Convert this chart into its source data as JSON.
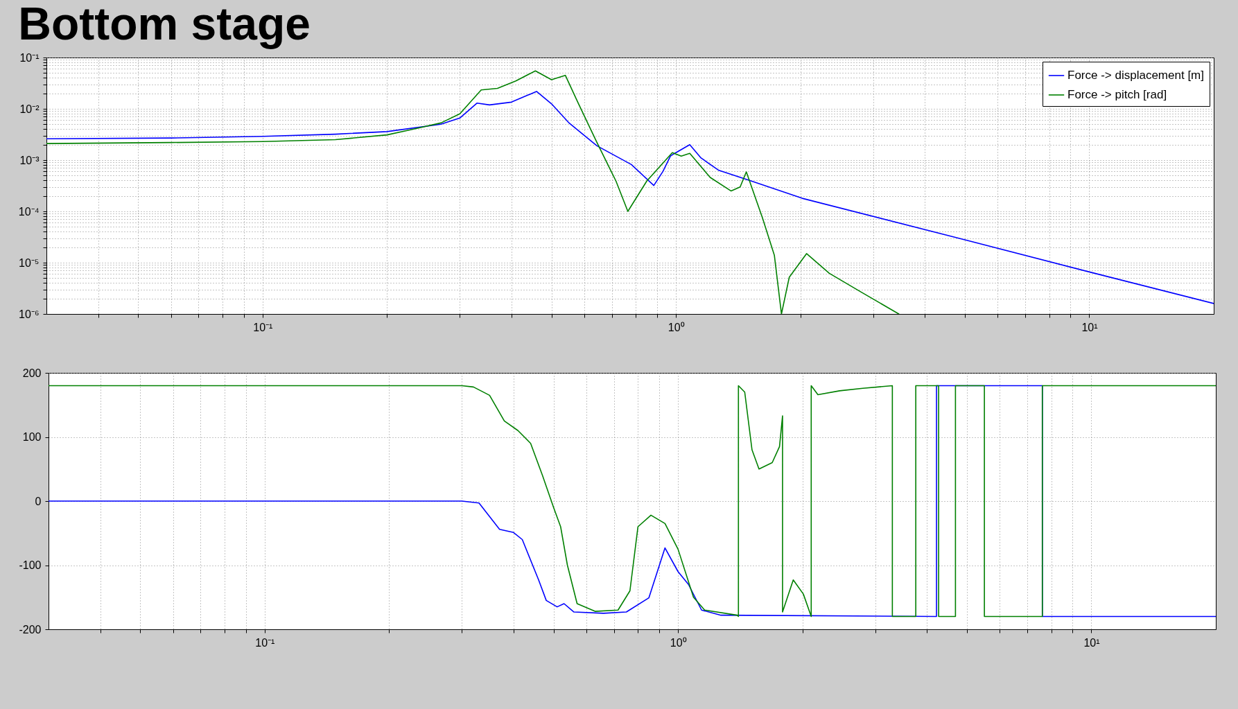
{
  "chart_data": [
    {
      "type": "line",
      "title": "Bottom stage",
      "log": "xy",
      "grid": true,
      "legend": "top right",
      "xlim": [
        0.03,
        20
      ],
      "xticks": [
        {
          "value": 0.04,
          "label": null
        },
        {
          "value": 0.05,
          "label": null
        },
        {
          "value": 0.06,
          "label": null
        },
        {
          "value": 0.07,
          "label": null
        },
        {
          "value": 0.08,
          "label": null
        },
        {
          "value": 0.09,
          "label": null
        },
        {
          "value": 0.1,
          "label": "10⁻¹"
        },
        {
          "value": 0.2,
          "label": null
        },
        {
          "value": 0.3,
          "label": null
        },
        {
          "value": 0.4,
          "label": null
        },
        {
          "value": 0.5,
          "label": null
        },
        {
          "value": 0.6,
          "label": null
        },
        {
          "value": 0.7,
          "label": null
        },
        {
          "value": 0.8,
          "label": null
        },
        {
          "value": 0.9,
          "label": null
        },
        {
          "value": 1,
          "label": "10⁰"
        },
        {
          "value": 2,
          "label": null
        },
        {
          "value": 3,
          "label": null
        },
        {
          "value": 4,
          "label": null
        },
        {
          "value": 5,
          "label": null
        },
        {
          "value": 6,
          "label": null
        },
        {
          "value": 7,
          "label": null
        },
        {
          "value": 8,
          "label": null
        },
        {
          "value": 9,
          "label": null
        },
        {
          "value": 10,
          "label": "10¹"
        }
      ],
      "ylim": [
        1e-06,
        0.1
      ],
      "yticks": [
        {
          "value": 1e-06,
          "label": "10⁻⁶"
        },
        {
          "value": 2e-06,
          "label": null
        },
        {
          "value": 3e-06,
          "label": null
        },
        {
          "value": 4e-06,
          "label": null
        },
        {
          "value": 5e-06,
          "label": null
        },
        {
          "value": 6e-06,
          "label": null
        },
        {
          "value": 7e-06,
          "label": null
        },
        {
          "value": 8e-06,
          "label": null
        },
        {
          "value": 9e-06,
          "label": null
        },
        {
          "value": 1e-05,
          "label": "10⁻⁵"
        },
        {
          "value": 2e-05,
          "label": null
        },
        {
          "value": 3e-05,
          "label": null
        },
        {
          "value": 4e-05,
          "label": null
        },
        {
          "value": 5e-05,
          "label": null
        },
        {
          "value": 6e-05,
          "label": null
        },
        {
          "value": 7e-05,
          "label": null
        },
        {
          "value": 8e-05,
          "label": null
        },
        {
          "value": 9e-05,
          "label": null
        },
        {
          "value": 0.0001,
          "label": "10⁻⁴"
        },
        {
          "value": 0.0002,
          "label": null
        },
        {
          "value": 0.0003,
          "label": null
        },
        {
          "value": 0.0004,
          "label": null
        },
        {
          "value": 0.0005,
          "label": null
        },
        {
          "value": 0.0006,
          "label": null
        },
        {
          "value": 0.0007,
          "label": null
        },
        {
          "value": 0.0008,
          "label": null
        },
        {
          "value": 0.0009,
          "label": null
        },
        {
          "value": 0.001,
          "label": "10⁻³"
        },
        {
          "value": 0.002,
          "label": null
        },
        {
          "value": 0.003,
          "label": null
        },
        {
          "value": 0.004,
          "label": null
        },
        {
          "value": 0.005,
          "label": null
        },
        {
          "value": 0.006,
          "label": null
        },
        {
          "value": 0.007,
          "label": null
        },
        {
          "value": 0.008,
          "label": null
        },
        {
          "value": 0.009,
          "label": null
        },
        {
          "value": 0.01,
          "label": "10⁻²"
        },
        {
          "value": 0.02,
          "label": null
        },
        {
          "value": 0.03,
          "label": null
        },
        {
          "value": 0.04,
          "label": null
        },
        {
          "value": 0.05,
          "label": null
        },
        {
          "value": 0.06,
          "label": null
        },
        {
          "value": 0.07,
          "label": null
        },
        {
          "value": 0.08,
          "label": null
        },
        {
          "value": 0.09,
          "label": null
        },
        {
          "value": 0.1,
          "label": "10⁻¹"
        }
      ],
      "series": [
        {
          "name": "Force -> displacement [m]",
          "color": "#0000ff",
          "x": [
            0.03,
            0.06,
            0.1,
            0.15,
            0.2,
            0.27,
            0.3,
            0.33,
            0.354,
            0.4,
            0.46,
            0.5,
            0.55,
            0.644,
            0.78,
            0.884,
            0.93,
            0.97,
            1.0,
            1.08,
            1.15,
            1.27,
            1.51,
            2.02,
            5,
            10,
            20
          ],
          "values": [
            0.0026,
            0.0027,
            0.0029,
            0.0032,
            0.0036,
            0.005,
            0.0066,
            0.0129,
            0.0119,
            0.0135,
            0.0218,
            0.0125,
            0.0054,
            0.0019,
            0.00082,
            0.00032,
            0.0006,
            0.0012,
            0.0014,
            0.002,
            0.0011,
            0.00063,
            0.0004,
            0.00018,
            2.8e-05,
            6.6e-06,
            1.6e-06
          ]
        },
        {
          "name": "Force -> pitch [rad]",
          "color": "#008000",
          "x": [
            0.03,
            0.06,
            0.1,
            0.15,
            0.2,
            0.228,
            0.27,
            0.3,
            0.338,
            0.37,
            0.41,
            0.457,
            0.5,
            0.54,
            0.58,
            0.644,
            0.716,
            0.765,
            0.85,
            0.98,
            1.03,
            1.08,
            1.21,
            1.36,
            1.43,
            1.48,
            1.62,
            1.73,
            1.8,
            1.88,
            2.07,
            2.35,
            2.8,
            3.46
          ],
          "values": [
            0.0021,
            0.0022,
            0.0023,
            0.0025,
            0.0031,
            0.0039,
            0.0053,
            0.008,
            0.0233,
            0.025,
            0.035,
            0.055,
            0.037,
            0.045,
            0.013,
            0.0022,
            0.00039,
            0.0001,
            0.00039,
            0.0014,
            0.0012,
            0.00135,
            0.00046,
            0.00025,
            0.0003,
            0.00059,
            7.4e-05,
            1.4e-05,
            1e-06,
            5.2e-06,
            1.5e-05,
            6.2e-06,
            2.7e-06,
            1e-06
          ]
        }
      ]
    },
    {
      "type": "line",
      "log": "x",
      "grid": true,
      "xlim": [
        0.03,
        20
      ],
      "xticks": [
        {
          "value": 0.04,
          "label": null
        },
        {
          "value": 0.05,
          "label": null
        },
        {
          "value": 0.06,
          "label": null
        },
        {
          "value": 0.07,
          "label": null
        },
        {
          "value": 0.08,
          "label": null
        },
        {
          "value": 0.09,
          "label": null
        },
        {
          "value": 0.1,
          "label": "10⁻¹"
        },
        {
          "value": 0.2,
          "label": null
        },
        {
          "value": 0.3,
          "label": null
        },
        {
          "value": 0.4,
          "label": null
        },
        {
          "value": 0.5,
          "label": null
        },
        {
          "value": 0.6,
          "label": null
        },
        {
          "value": 0.7,
          "label": null
        },
        {
          "value": 0.8,
          "label": null
        },
        {
          "value": 0.9,
          "label": null
        },
        {
          "value": 1,
          "label": "10⁰"
        },
        {
          "value": 2,
          "label": null
        },
        {
          "value": 3,
          "label": null
        },
        {
          "value": 4,
          "label": null
        },
        {
          "value": 5,
          "label": null
        },
        {
          "value": 6,
          "label": null
        },
        {
          "value": 7,
          "label": null
        },
        {
          "value": 8,
          "label": null
        },
        {
          "value": 9,
          "label": null
        },
        {
          "value": 10,
          "label": "10¹"
        }
      ],
      "ylim": [
        -200,
        200
      ],
      "yticks": [
        -200,
        -100,
        0,
        100,
        200
      ],
      "series": [
        {
          "color": "#0000ff",
          "x": [
            0.03,
            0.3,
            0.33,
            0.37,
            0.4,
            0.42,
            0.46,
            0.48,
            0.51,
            0.53,
            0.56,
            0.66,
            0.75,
            0.85,
            0.93,
            1.0,
            1.06,
            1.14,
            1.27,
            4.22,
            4.22,
            7.61,
            7.61,
            20
          ],
          "values": [
            0,
            0,
            -3,
            -44,
            -49,
            -60,
            -123,
            -155,
            -165,
            -160,
            -173,
            -175,
            -173,
            -151,
            -73,
            -110,
            -130,
            -170,
            -178,
            -180,
            180,
            180,
            -180,
            -180
          ]
        },
        {
          "color": "#008000",
          "x": [
            0.03,
            0.3,
            0.32,
            0.35,
            0.38,
            0.41,
            0.44,
            0.47,
            0.5,
            0.52,
            0.54,
            0.57,
            0.63,
            0.716,
            0.765,
            0.8,
            0.86,
            0.93,
            1.0,
            1.09,
            1.16,
            1.39,
            1.4,
            1.4,
            1.45,
            1.51,
            1.57,
            1.69,
            1.76,
            1.79,
            1.79,
            1.9,
            2.01,
            2.1,
            2.1,
            2.18,
            2.46,
            2.8,
            3.3,
            3.3,
            3.76,
            3.76,
            4.27,
            4.27,
            4.69,
            4.69,
            5.51,
            5.51,
            7.61,
            7.61,
            20
          ],
          "values": [
            180,
            180,
            178,
            165,
            125,
            110,
            90,
            40,
            -10,
            -40,
            -100,
            -160,
            -172,
            -170,
            -140,
            -40,
            -22,
            -35,
            -75,
            -150,
            -170,
            -178,
            -180,
            180,
            170,
            80,
            50,
            60,
            85,
            133,
            -173,
            -123,
            -145,
            -180,
            180,
            166,
            172,
            176,
            180,
            -180,
            -180,
            180,
            180,
            -180,
            -180,
            180,
            180,
            -180,
            -180,
            180,
            180
          ]
        }
      ]
    }
  ]
}
